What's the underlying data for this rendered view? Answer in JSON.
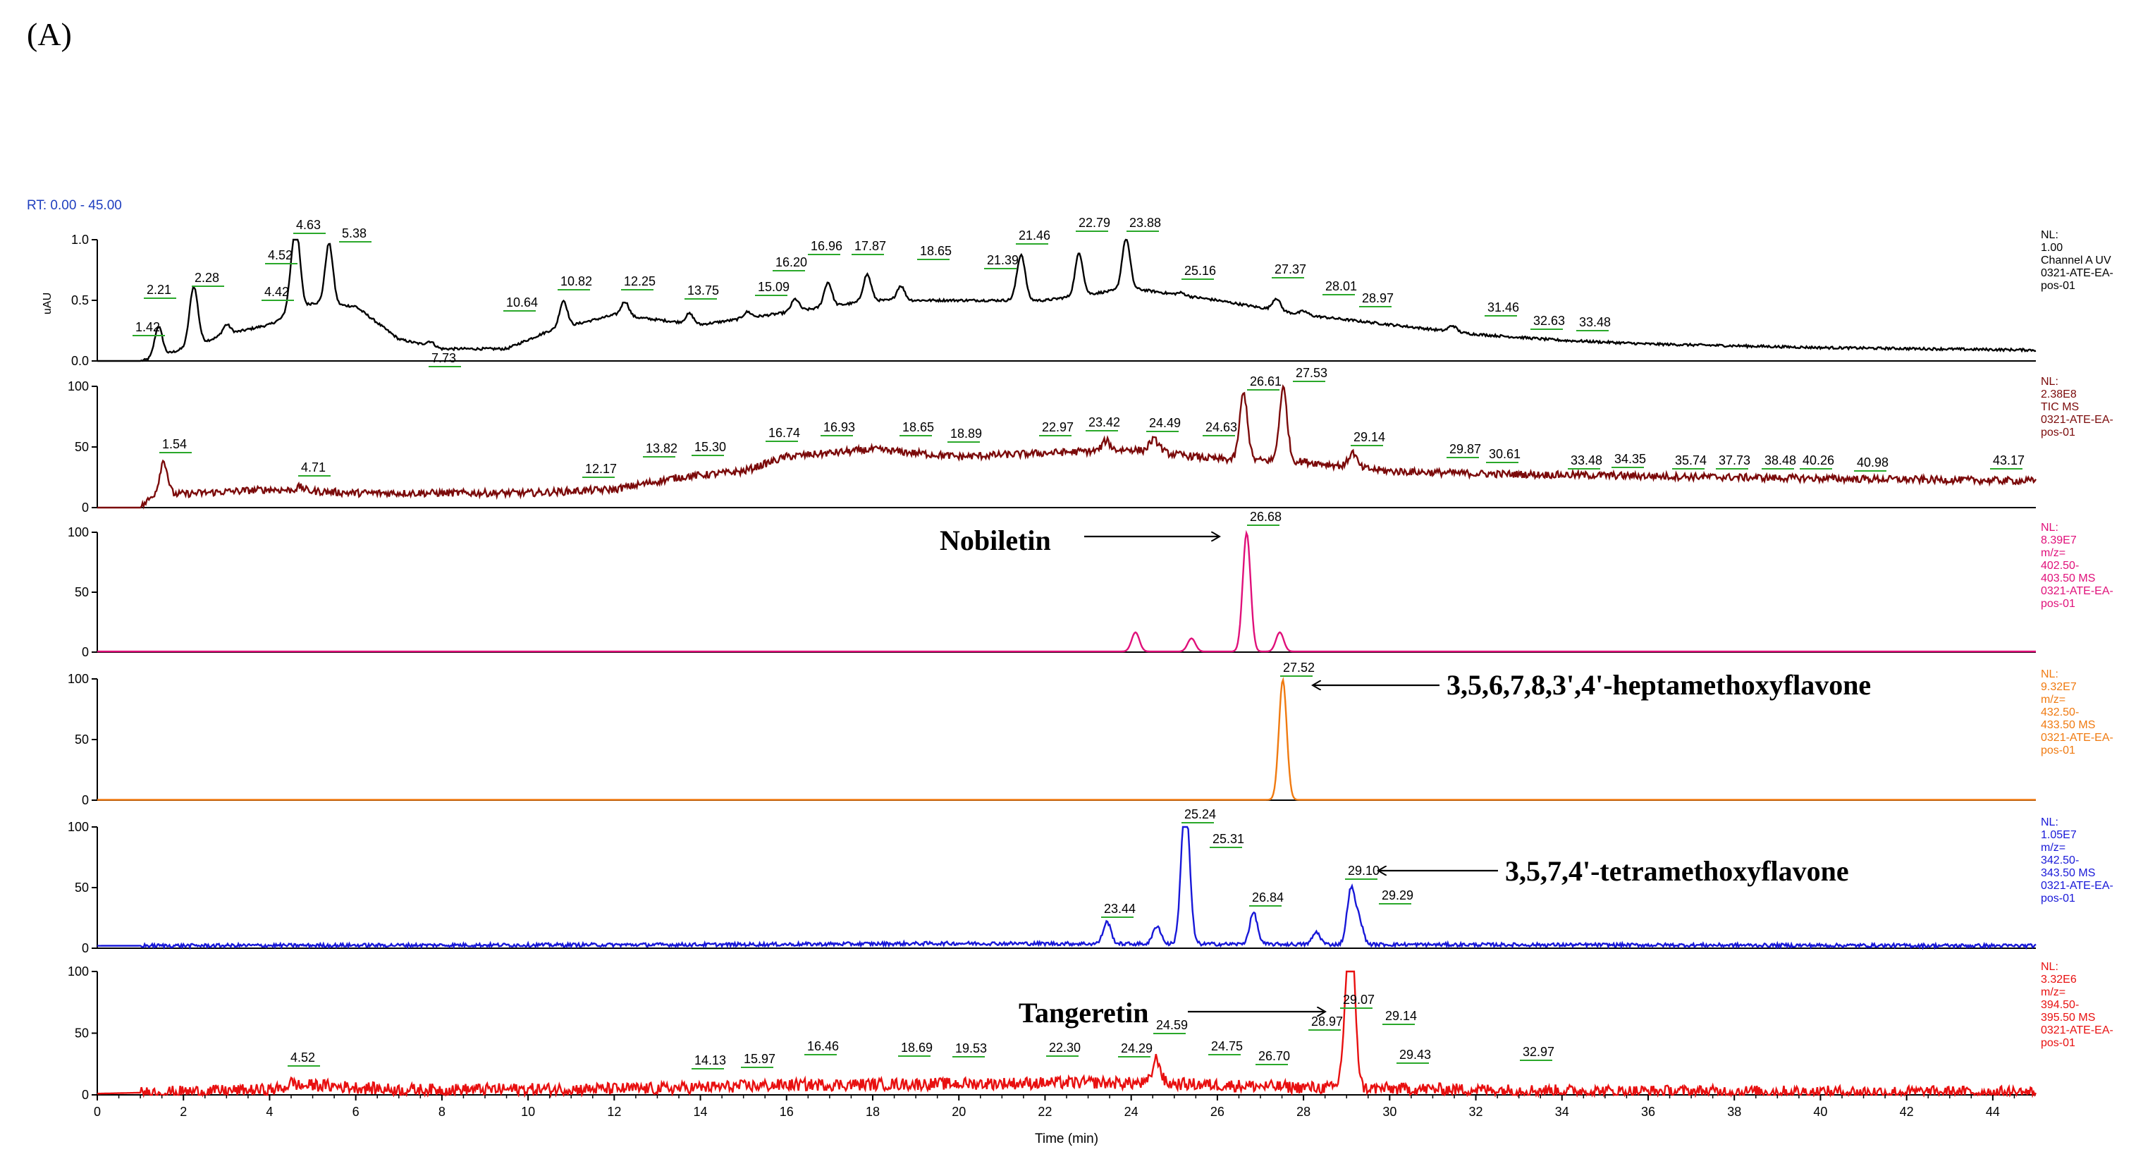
{
  "figure_label": "(A)",
  "range_label": "RT: 0.00 - 45.00",
  "chart_data": {
    "type": "line",
    "xlabel": "Time (min)",
    "xlim": [
      0,
      45
    ],
    "x_ticks": [
      "0",
      "2",
      "4",
      "6",
      "8",
      "10",
      "12",
      "14",
      "16",
      "18",
      "20",
      "22",
      "24",
      "26",
      "28",
      "30",
      "32",
      "34",
      "36",
      "38",
      "40",
      "42",
      "44"
    ],
    "panels": [
      {
        "name": "uv",
        "color": "#000000",
        "ylabel": "uAU",
        "y_ticks": [
          "0.0",
          "0.5",
          "1.0"
        ],
        "ylim": [
          0,
          1.0
        ],
        "nl_lines": [
          "NL:",
          "1.00",
          "Channel A UV",
          "0321-ATE-EA-",
          "pos-01"
        ],
        "noise": 0.01,
        "baseline": [
          [
            0,
            0
          ],
          [
            1.0,
            0
          ],
          [
            1.3,
            0.02
          ],
          [
            3,
            0.22
          ],
          [
            4,
            0.3
          ],
          [
            5,
            0.48
          ],
          [
            6,
            0.45
          ],
          [
            7,
            0.18
          ],
          [
            8,
            0.1
          ],
          [
            9.5,
            0.1
          ],
          [
            10.5,
            0.25
          ],
          [
            12,
            0.38
          ],
          [
            14,
            0.3
          ],
          [
            16,
            0.4
          ],
          [
            18,
            0.5
          ],
          [
            20,
            0.5
          ],
          [
            22,
            0.5
          ],
          [
            24,
            0.6
          ],
          [
            26,
            0.5
          ],
          [
            28,
            0.38
          ],
          [
            30,
            0.3
          ],
          [
            32,
            0.22
          ],
          [
            34,
            0.17
          ],
          [
            36,
            0.14
          ],
          [
            40,
            0.11
          ],
          [
            45,
            0.09
          ]
        ],
        "peaks": [
          {
            "rt": 1.42,
            "h": 0.25
          },
          {
            "rt": 2.21,
            "h": 0.3
          },
          {
            "rt": 2.28,
            "h": 0.22
          },
          {
            "rt": 3.0,
            "h": 0.08
          },
          {
            "rt": 4.42,
            "h": 0.0
          },
          {
            "rt": 4.52,
            "h": 0.25
          },
          {
            "rt": 4.63,
            "h": 0.55
          },
          {
            "rt": 5.38,
            "h": 0.5
          },
          {
            "rt": 7.73,
            "h": 0.04
          },
          {
            "rt": 10.82,
            "h": 0.22
          },
          {
            "rt": 12.25,
            "h": 0.12
          },
          {
            "rt": 13.75,
            "h": 0.08
          },
          {
            "rt": 15.09,
            "h": 0.05
          },
          {
            "rt": 16.2,
            "h": 0.1
          },
          {
            "rt": 16.96,
            "h": 0.2
          },
          {
            "rt": 17.87,
            "h": 0.22
          },
          {
            "rt": 18.65,
            "h": 0.12
          },
          {
            "rt": 21.39,
            "h": 0.1
          },
          {
            "rt": 21.46,
            "h": 0.3
          },
          {
            "rt": 22.79,
            "h": 0.35
          },
          {
            "rt": 23.88,
            "h": 0.42
          },
          {
            "rt": 25.16,
            "h": 0.02
          },
          {
            "rt": 27.37,
            "h": 0.1
          },
          {
            "rt": 28.01,
            "h": 0.03
          },
          {
            "rt": 31.46,
            "h": 0.05
          }
        ],
        "labels": [
          "1.42",
          "2.21",
          "2.28",
          "4.42",
          "4.52",
          "4.63",
          "5.38",
          "7.73",
          "10.64",
          "10.82",
          "12.25",
          "13.75",
          "15.09",
          "16.20",
          "16.96",
          "17.87",
          "18.65",
          "21.39",
          "21.46",
          "22.79",
          "23.88",
          "25.16",
          "27.37",
          "28.01",
          "28.97",
          "31.46",
          "32.63",
          "33.48"
        ]
      },
      {
        "name": "tic",
        "color": "#7b0a0a",
        "ylabel": "",
        "y_ticks": [
          "0",
          "50",
          "100"
        ],
        "ylim": [
          0,
          100
        ],
        "nl_lines": [
          "NL:",
          "2.38E8",
          "TIC MS",
          "0321-ATE-EA-",
          "pos-01"
        ],
        "noise": 3,
        "baseline": [
          [
            0,
            0
          ],
          [
            1.0,
            0
          ],
          [
            1.3,
            10
          ],
          [
            4,
            15
          ],
          [
            6,
            12
          ],
          [
            10,
            12
          ],
          [
            12,
            15
          ],
          [
            13.5,
            25
          ],
          [
            15,
            30
          ],
          [
            16,
            42
          ],
          [
            18,
            48
          ],
          [
            20,
            42
          ],
          [
            22,
            45
          ],
          [
            24,
            48
          ],
          [
            26,
            40
          ],
          [
            28,
            38
          ],
          [
            30,
            30
          ],
          [
            32,
            28
          ],
          [
            36,
            26
          ],
          [
            40,
            24
          ],
          [
            45,
            22
          ]
        ],
        "peaks": [
          {
            "rt": 1.54,
            "h": 28
          },
          {
            "rt": 4.71,
            "h": 3
          },
          {
            "rt": 23.42,
            "h": 8
          },
          {
            "rt": 24.49,
            "h": 8
          },
          {
            "rt": 24.63,
            "h": 5
          },
          {
            "rt": 26.61,
            "h": 55
          },
          {
            "rt": 27.53,
            "h": 60
          },
          {
            "rt": 29.14,
            "h": 12
          }
        ],
        "labels": [
          "1.54",
          "4.71",
          "12.17",
          "13.82",
          "15.30",
          "16.74",
          "16.93",
          "18.65",
          "18.89",
          "22.97",
          "23.42",
          "24.49",
          "24.63",
          "26.61",
          "27.53",
          "29.14",
          "29.87",
          "30.61",
          "33.48",
          "34.35",
          "35.74",
          "37.73",
          "38.48",
          "40.26",
          "40.98",
          "43.17"
        ]
      },
      {
        "name": "nobiletin",
        "color": "#e0107a",
        "ylabel": "",
        "y_ticks": [
          "0",
          "50",
          "100"
        ],
        "ylim": [
          0,
          100
        ],
        "nl_lines": [
          "NL:",
          "8.39E7",
          "m/z=",
          "402.50-",
          "403.50 MS",
          "0321-ATE-EA-",
          "pos-01"
        ],
        "noise": 0,
        "baseline": [
          [
            0,
            0.5
          ],
          [
            45,
            0.5
          ]
        ],
        "peaks": [
          {
            "rt": 24.1,
            "h": 16
          },
          {
            "rt": 25.4,
            "h": 11
          },
          {
            "rt": 26.68,
            "h": 99
          },
          {
            "rt": 27.45,
            "h": 16
          }
        ],
        "labels": [
          "26.68"
        ]
      },
      {
        "name": "heptamethoxyflavone",
        "color": "#f07a10",
        "ylabel": "",
        "y_ticks": [
          "0",
          "50",
          "100"
        ],
        "ylim": [
          0,
          100
        ],
        "nl_lines": [
          "NL:",
          "9.32E7",
          "m/z=",
          "432.50-",
          "433.50 MS",
          "0321-ATE-EA-",
          "pos-01"
        ],
        "noise": 0,
        "baseline": [
          [
            0,
            0.3
          ],
          [
            45,
            0.3
          ]
        ],
        "peaks": [
          {
            "rt": 27.52,
            "h": 99
          }
        ],
        "labels": [
          "27.52"
        ]
      },
      {
        "name": "tetramethoxyflavone",
        "color": "#1818d8",
        "ylabel": "",
        "y_ticks": [
          "0",
          "50",
          "100"
        ],
        "ylim": [
          0,
          100
        ],
        "nl_lines": [
          "NL:",
          "1.05E7",
          "m/z=",
          "342.50-",
          "343.50 MS",
          "0321-ATE-EA-",
          "pos-01"
        ],
        "noise": 1.5,
        "baseline": [
          [
            0,
            2
          ],
          [
            15,
            3
          ],
          [
            20,
            4
          ],
          [
            30,
            3
          ],
          [
            45,
            2
          ]
        ],
        "peaks": [
          {
            "rt": 23.44,
            "h": 18
          },
          {
            "rt": 24.6,
            "h": 15
          },
          {
            "rt": 25.24,
            "h": 95
          },
          {
            "rt": 25.31,
            "h": 35
          },
          {
            "rt": 26.84,
            "h": 26
          },
          {
            "rt": 28.3,
            "h": 10
          },
          {
            "rt": 29.1,
            "h": 45
          },
          {
            "rt": 29.29,
            "h": 20
          }
        ],
        "labels": [
          "23.44",
          "25.24",
          "25.31",
          "26.84",
          "29.10",
          "29.29"
        ]
      },
      {
        "name": "tangeretin",
        "color": "#e81010",
        "ylabel": "",
        "y_ticks": [
          "0",
          "50",
          "100"
        ],
        "ylim": [
          0,
          100
        ],
        "nl_lines": [
          "NL:",
          "3.32E6",
          "m/z=",
          "394.50-",
          "395.50 MS",
          "0321-ATE-EA-",
          "pos-01"
        ],
        "noise": 5,
        "baseline": [
          [
            0,
            1
          ],
          [
            4,
            4
          ],
          [
            5,
            8
          ],
          [
            7,
            4
          ],
          [
            13,
            5
          ],
          [
            16,
            8
          ],
          [
            20,
            9
          ],
          [
            23,
            10
          ],
          [
            25,
            9
          ],
          [
            28,
            6
          ],
          [
            30,
            5
          ],
          [
            35,
            3
          ],
          [
            45,
            2
          ]
        ],
        "peaks": [
          {
            "rt": 4.52,
            "h": 4
          },
          {
            "rt": 24.59,
            "h": 20
          },
          {
            "rt": 28.97,
            "h": 25
          },
          {
            "rt": 29.07,
            "h": 78
          },
          {
            "rt": 29.14,
            "h": 60
          }
        ],
        "labels": [
          "4.52",
          "14.13",
          "15.97",
          "16.46",
          "18.69",
          "19.53",
          "22.30",
          "24.29",
          "24.59",
          "24.75",
          "26.70",
          "28.97",
          "29.07",
          "29.14",
          "29.43",
          "32.97"
        ]
      }
    ],
    "annotations": [
      {
        "name": "nobiletin",
        "text": "Nobiletin"
      },
      {
        "name": "heptamethoxyflavone",
        "text": "3,5,6,7,8,3',4'-heptamethoxyflavone"
      },
      {
        "name": "tetramethoxyflavone",
        "text": "3,5,7,4'-tetramethoxyflavone"
      },
      {
        "name": "tangeretin",
        "text": "Tangeretin"
      }
    ]
  }
}
